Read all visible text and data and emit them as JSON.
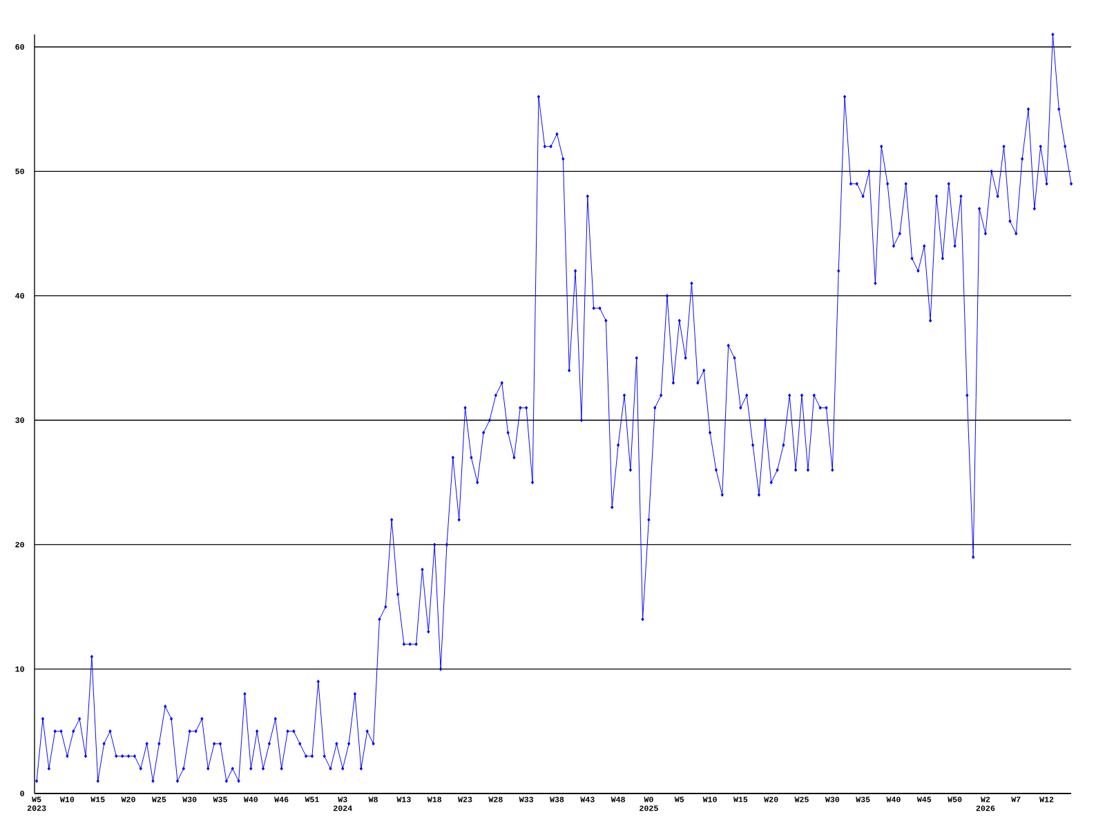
{
  "chart_data": {
    "type": "line",
    "color": "#0000ff",
    "marker": "diamond",
    "grid": "y",
    "ylim": [
      0,
      61
    ],
    "yticks": [
      0,
      10,
      20,
      30,
      40,
      50,
      60
    ],
    "categories": [
      "W5 2023",
      null,
      null,
      null,
      null,
      "W10",
      null,
      null,
      null,
      null,
      "W15",
      null,
      null,
      null,
      null,
      "W20",
      null,
      null,
      null,
      null,
      "W25",
      null,
      null,
      null,
      null,
      "W30",
      null,
      null,
      null,
      null,
      "W35",
      null,
      null,
      null,
      null,
      "W40",
      null,
      null,
      null,
      null,
      "W46",
      null,
      null,
      null,
      null,
      "W51",
      null,
      null,
      null,
      null,
      "W3 2024",
      null,
      null,
      null,
      null,
      "W8",
      null,
      null,
      null,
      null,
      "W13",
      null,
      null,
      null,
      null,
      "W18",
      null,
      null,
      null,
      null,
      "W23",
      null,
      null,
      null,
      null,
      "W28",
      null,
      null,
      null,
      null,
      "W33",
      null,
      null,
      null,
      null,
      "W38",
      null,
      null,
      null,
      null,
      "W43",
      null,
      null,
      null,
      null,
      "W48",
      null,
      null,
      null,
      null,
      "W0 2025",
      null,
      null,
      null,
      null,
      "W5",
      null,
      null,
      null,
      null,
      "W10",
      null,
      null,
      null,
      null,
      "W15",
      null,
      null,
      null,
      null,
      "W20",
      null,
      null,
      null,
      null,
      "W25",
      null,
      null,
      null,
      null,
      "W30",
      null,
      null,
      null,
      null,
      "W35",
      null,
      null,
      null,
      null,
      "W40",
      null,
      null,
      null,
      null,
      "W45",
      null,
      null,
      null,
      null,
      "W50",
      null,
      null,
      null,
      null,
      "W2 2026",
      null,
      null,
      null,
      null,
      "W7",
      null,
      null,
      null,
      null,
      "W12",
      null,
      null,
      null,
      null
    ],
    "values": [
      1,
      6,
      2,
      5,
      5,
      3,
      5,
      6,
      3,
      11,
      1,
      4,
      5,
      3,
      3,
      3,
      3,
      2,
      4,
      1,
      4,
      7,
      6,
      1,
      2,
      5,
      5,
      6,
      2,
      4,
      4,
      1,
      2,
      1,
      8,
      2,
      5,
      2,
      4,
      6,
      2,
      5,
      5,
      4,
      3,
      3,
      9,
      3,
      2,
      4,
      2,
      4,
      8,
      2,
      5,
      4,
      14,
      15,
      22,
      16,
      12,
      12,
      12,
      18,
      13,
      20,
      10,
      20,
      27,
      22,
      31,
      27,
      25,
      29,
      30,
      32,
      33,
      29,
      27,
      31,
      31,
      25,
      56,
      52,
      52,
      53,
      51,
      34,
      42,
      30,
      48,
      39,
      39,
      38,
      23,
      28,
      32,
      26,
      35,
      14,
      22,
      31,
      32,
      40,
      33,
      38,
      35,
      41,
      33,
      34,
      29,
      26,
      24,
      36,
      35,
      31,
      32,
      28,
      24,
      30,
      25,
      26,
      28,
      32,
      26,
      32,
      26,
      32,
      31,
      31,
      26,
      42,
      56,
      49,
      49,
      48,
      50,
      41,
      52,
      49,
      44,
      45,
      49,
      43,
      42,
      44,
      38,
      48,
      43,
      49,
      44,
      48,
      32,
      19,
      47,
      45,
      50,
      48,
      52,
      46,
      45,
      51,
      55,
      47,
      52,
      49,
      61,
      55,
      52,
      49
    ]
  }
}
